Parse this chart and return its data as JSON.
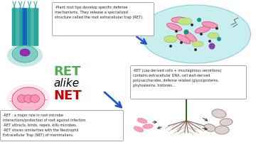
{
  "background_color": "#ffffff",
  "text_RET": "RET",
  "text_alike": "alike",
  "text_NET": "NET",
  "text_box1": "-Plant root tips develop specific defense\nmechanisms. They release a specialized\nstructure called the root extracellular trap (RET).",
  "text_box2": "-RET (cap-derived cells + mucilaginous secretions)\ncontains extracellular DNA, cell wall-derived\npolysaccharides, defense related (glyco)proteins,\nphytoalexins, histones...",
  "text_box3": "-RET : a major role in root-microbe\ninteractions/protection of root against infection.\n-RET attracts, binds, repels, kills microbes.\n-RET shares similarities with the Neutrophil\nExtracellular Trap (NET) of mammalians.",
  "color_RET": "#4caf50",
  "color_NET": "#cc0000",
  "color_alike": "#000000",
  "color_arrow_blue": "#2255cc",
  "color_box_fill": "#ffffff",
  "color_box_edge": "#999999",
  "color_cloud_fill": "#c8eef0",
  "color_cloud_edge": "#90d0d8"
}
